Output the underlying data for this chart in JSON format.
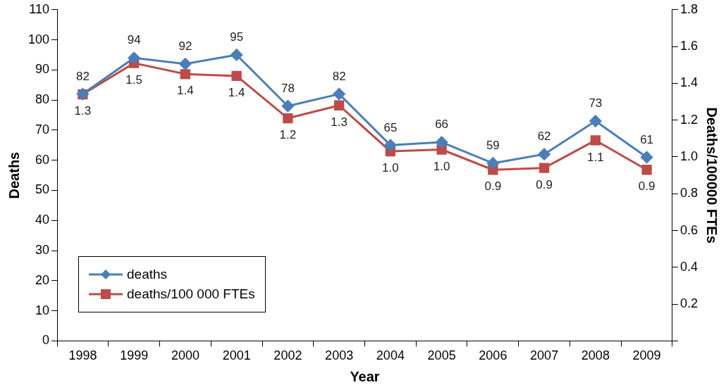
{
  "chart_data": {
    "type": "line",
    "xlabel": "Year",
    "ylabel": "Deaths",
    "y2label": "Deaths/100000 FTEs",
    "categories": [
      "1998",
      "1999",
      "2000",
      "2001",
      "2002",
      "2003",
      "2004",
      "2005",
      "2006",
      "2007",
      "2008",
      "2009"
    ],
    "series": [
      {
        "name": "deaths",
        "color": "#4a7ebb",
        "marker": "diamond",
        "values": [
          82,
          94,
          92,
          95,
          78,
          82,
          65,
          66,
          59,
          62,
          73,
          61
        ],
        "value_labels": [
          "82",
          "94",
          "92",
          "95",
          "78",
          "82",
          "65",
          "66",
          "59",
          "62",
          "73",
          "61"
        ]
      },
      {
        "name": "deaths/100 000 FTEs",
        "color": "#be4b48",
        "marker": "square",
        "axis": "y2",
        "values": [
          1.34,
          1.51,
          1.45,
          1.44,
          1.21,
          1.28,
          1.03,
          1.04,
          0.93,
          0.94,
          1.09,
          0.93
        ],
        "value_labels": [
          "1.3",
          "1.5",
          "1.4",
          "1.4",
          "1.2",
          "1.3",
          "1.0",
          "1.0",
          "0.9",
          "0.9",
          "1.1",
          "0.9"
        ]
      }
    ],
    "ylim": [
      0,
      110
    ],
    "yticks": [
      0,
      10,
      20,
      30,
      40,
      50,
      60,
      70,
      80,
      90,
      100,
      110
    ],
    "y2lim": [
      0,
      1.8
    ],
    "y2ticks": [
      {
        "value": 0,
        "label": null
      },
      0.2,
      0.4,
      0.6,
      0.8,
      {
        "value": 1,
        "label": "1.0"
      },
      1.2,
      1.4,
      1.6,
      1.8
    ],
    "grid": false,
    "legend": "bottom left",
    "line_style": "solid"
  }
}
